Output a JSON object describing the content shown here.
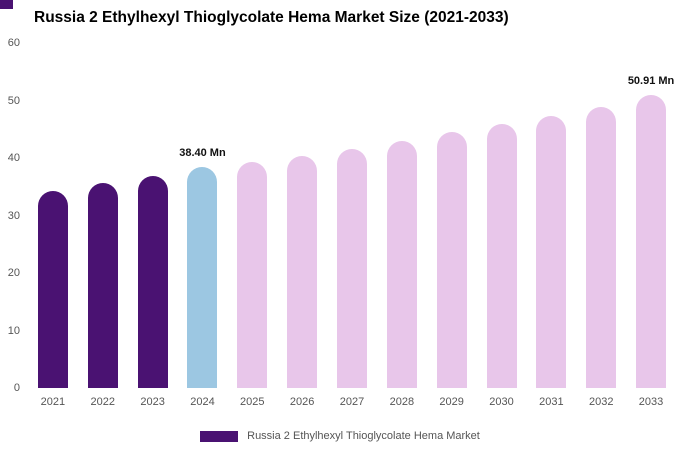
{
  "title": "Russia 2 Ethylhexyl Thioglycolate Hema Market Size (2021-2033)",
  "accent": {
    "corner_color": "#4a1272"
  },
  "legend": {
    "label": "Russia 2 Ethylhexyl Thioglycolate Hema Market",
    "swatch_color": "#4a1272"
  },
  "chart_data": {
    "type": "bar",
    "title": "Russia 2 Ethylhexyl Thioglycolate Hema Market Size (2021-2033)",
    "categories": [
      "2021",
      "2022",
      "2023",
      "2024",
      "2025",
      "2026",
      "2027",
      "2028",
      "2029",
      "2030",
      "2031",
      "2032",
      "2033"
    ],
    "values": [
      34.3,
      35.6,
      36.9,
      38.4,
      39.3,
      40.4,
      41.6,
      43.0,
      44.5,
      45.9,
      47.3,
      48.9,
      50.91
    ],
    "bar_colors": [
      "#4a1272",
      "#4a1272",
      "#4a1272",
      "#9cc7e2",
      "#e8c6ea",
      "#e8c6ea",
      "#e8c6ea",
      "#e8c6ea",
      "#e8c6ea",
      "#e8c6ea",
      "#e8c6ea",
      "#e8c6ea",
      "#e8c6ea"
    ],
    "annotations": [
      {
        "category": "2024",
        "label": "38.40 Mn"
      },
      {
        "category": "2033",
        "label": "50.91 Mn"
      }
    ],
    "xlabel": "",
    "ylabel": "",
    "ylim": [
      0,
      60
    ],
    "yticks": [
      0,
      10,
      20,
      30,
      40,
      50,
      60
    ],
    "grid": false,
    "legend_position": "bottom",
    "legend_entries": [
      "Russia 2 Ethylhexyl Thioglycolate Hema Market"
    ]
  }
}
